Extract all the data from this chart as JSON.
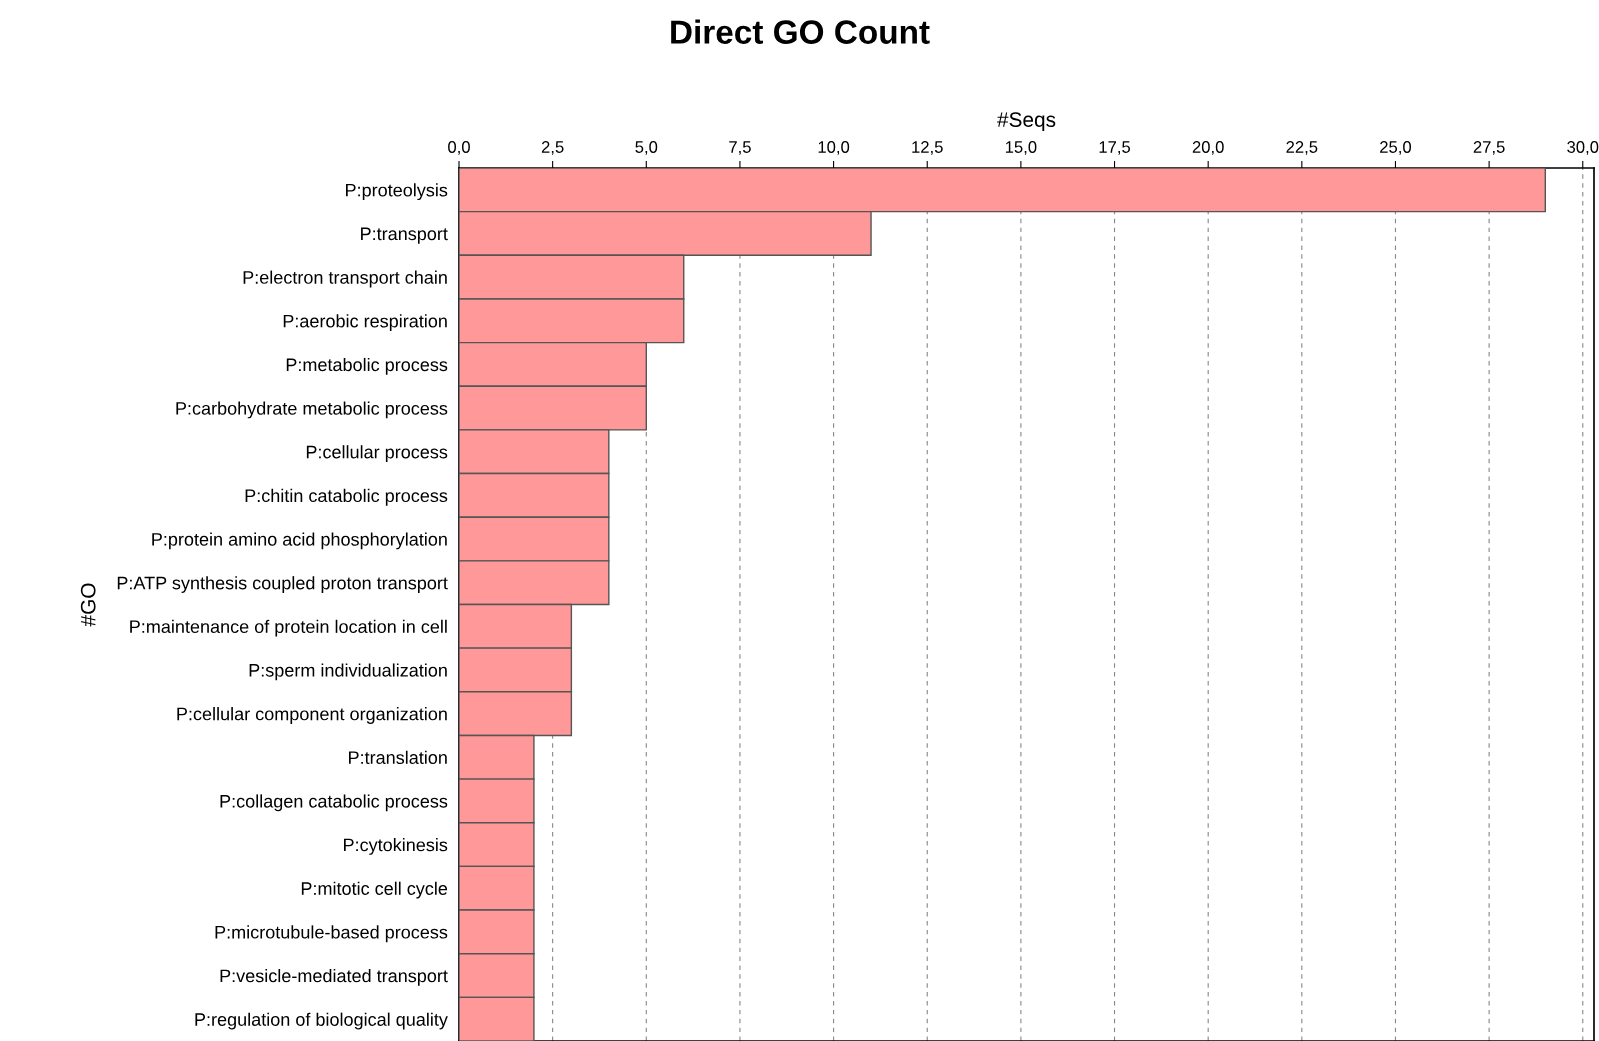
{
  "chart_data": {
    "type": "bar",
    "orientation": "horizontal",
    "title": "Direct GO Count",
    "xlabel": "#Seqs",
    "ylabel": "#GO",
    "categories": [
      "P:proteolysis",
      "P:transport",
      "P:electron transport chain",
      "P:aerobic respiration",
      "P:metabolic process",
      "P:carbohydrate metabolic process",
      "P:cellular process",
      "P:chitin catabolic process",
      "P:protein amino acid phosphorylation",
      "P:ATP synthesis coupled proton transport",
      "P:maintenance of protein location in cell",
      "P:sperm individualization",
      "P:cellular component organization",
      "P:translation",
      "P:collagen catabolic process",
      "P:cytokinesis",
      "P:mitotic cell cycle",
      "P:microtubule-based process",
      "P:vesicle-mediated transport",
      "P:regulation of biological quality"
    ],
    "values": [
      29,
      11,
      6,
      6,
      5,
      5,
      4,
      4,
      4,
      4,
      3,
      3,
      3,
      2,
      2,
      2,
      2,
      2,
      2,
      2
    ],
    "color": "#ff9999",
    "xlim": [
      0,
      30.3
    ],
    "xticks": [
      {
        "value": 0,
        "label": "0,0"
      },
      {
        "value": 2.5,
        "label": "2,5"
      },
      {
        "value": 5,
        "label": "5,0"
      },
      {
        "value": 7.5,
        "label": "7,5"
      },
      {
        "value": 10,
        "label": "10,0"
      },
      {
        "value": 12.5,
        "label": "12,5"
      },
      {
        "value": 15,
        "label": "15,0"
      },
      {
        "value": 17.5,
        "label": "17,5"
      },
      {
        "value": 20,
        "label": "20,0"
      },
      {
        "value": 22.5,
        "label": "22,5"
      },
      {
        "value": 25,
        "label": "25,0"
      },
      {
        "value": 27.5,
        "label": "27,5"
      },
      {
        "value": 30,
        "label": "30,0"
      }
    ],
    "grid": "x"
  }
}
